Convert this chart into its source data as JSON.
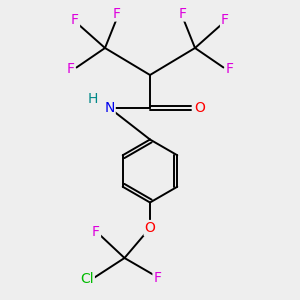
{
  "background_color": "#eeeeee",
  "bond_color": "#000000",
  "F_color": "#dd00dd",
  "O_color": "#ff0000",
  "N_color": "#0000ee",
  "Cl_color": "#00bb00",
  "H_color": "#008888",
  "figsize": [
    3.0,
    3.0
  ],
  "dpi": 100,
  "xlim": [
    0,
    10
  ],
  "ylim": [
    0,
    10
  ]
}
